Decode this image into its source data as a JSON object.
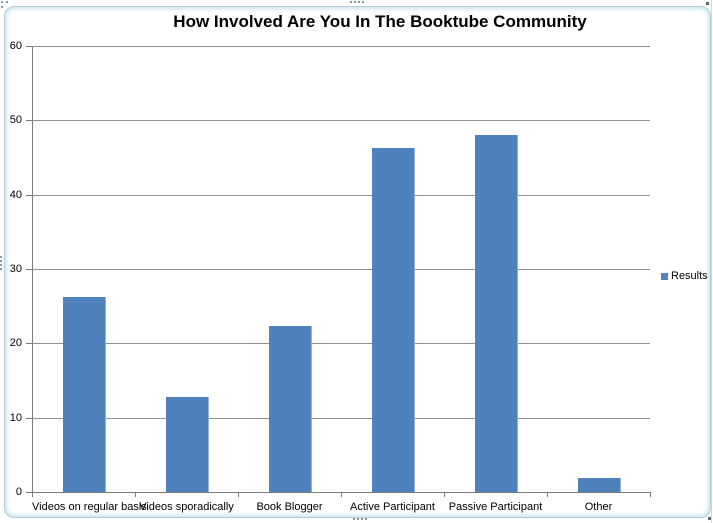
{
  "chart_data": {
    "type": "bar",
    "title": "How Involved Are You In The Booktube Community",
    "categories": [
      "Videos on regular basis",
      "Videos sporadically",
      "Book Blogger",
      "Active Participant",
      "Passive Participant",
      "Other"
    ],
    "series": [
      {
        "name": "Results",
        "values": [
          26.3,
          12.8,
          22.3,
          46.3,
          48.0,
          1.9
        ]
      }
    ],
    "xlabel": "",
    "ylabel": "",
    "ylim": [
      0,
      60
    ],
    "yticks": [
      0,
      10,
      20,
      30,
      40,
      50,
      60
    ],
    "grid": true,
    "legend_position": "right",
    "colors": {
      "bar": "#4f81bd",
      "gridline": "#8f8f8f",
      "axis": "#7a7a7a",
      "title_text": "#000000",
      "frame_border": "#b7c9d7"
    }
  },
  "legend": {
    "items": [
      {
        "label": "Results",
        "color": "#4f81bd"
      }
    ]
  }
}
